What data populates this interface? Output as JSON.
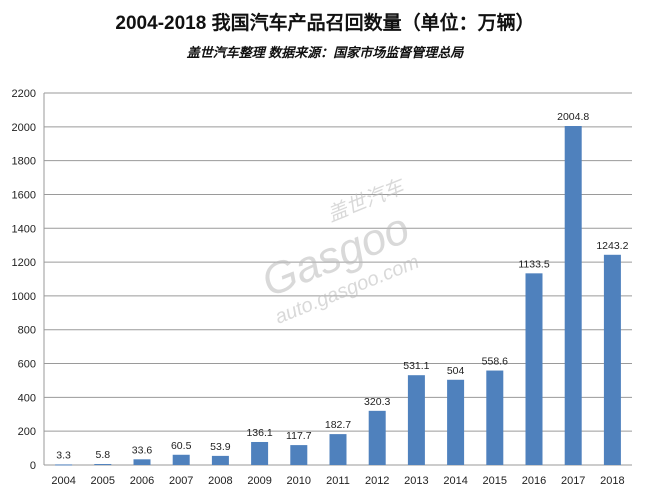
{
  "chart_data": {
    "type": "bar",
    "title": "2004-2018 我国汽车产品召回数量（单位：万辆）",
    "subtitle": "盖世汽车整理 数据来源：国家市场监督管理总局",
    "xlabel": "",
    "ylabel": "",
    "categories": [
      "2004",
      "2005",
      "2006",
      "2007",
      "2008",
      "2009",
      "2010",
      "2011",
      "2012",
      "2013",
      "2014",
      "2015",
      "2016",
      "2017",
      "2018"
    ],
    "values": [
      3.3,
      5.8,
      33.6,
      60.5,
      53.9,
      136.1,
      117.7,
      182.7,
      320.3,
      531.1,
      504,
      558.6,
      1133.5,
      2004.8,
      1243.2
    ],
    "labels": [
      "3.3",
      "5.8",
      "33.6",
      "60.5",
      "53.9",
      "136.1",
      "117.7",
      "182.7",
      "320.3",
      "531.1",
      "504",
      "558.6",
      "1133.5",
      "2004.8",
      "1243.2"
    ],
    "ylim": [
      0,
      2200
    ],
    "yticks": [
      0,
      200,
      400,
      600,
      800,
      1000,
      1200,
      1400,
      1600,
      1800,
      2000,
      2200
    ],
    "grid": true,
    "bar_color": "#4f81bd"
  },
  "watermark": {
    "cn": "盖世汽车",
    "brand": "Gasgoo",
    "url": "auto.gasgoo.com"
  }
}
